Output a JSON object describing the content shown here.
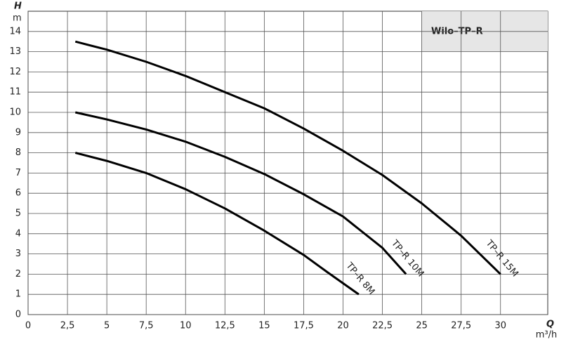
{
  "chart_data": {
    "type": "line",
    "legend_title": "Wilo–TP–R",
    "y_label": "H",
    "y_unit": "m",
    "x_label": "Q",
    "x_unit": "m³/h",
    "xlim": [
      0,
      33
    ],
    "ylim": [
      0,
      15
    ],
    "xticks": [
      0,
      {
        "value": 2.5,
        "label": "2,5"
      },
      5,
      {
        "value": 7.5,
        "label": "7,5"
      },
      10,
      {
        "value": 12.5,
        "label": "12,5"
      },
      15,
      {
        "value": 17.5,
        "label": "17,5"
      },
      20,
      {
        "value": 22.5,
        "label": "22,5"
      },
      25,
      {
        "value": 27.5,
        "label": "27,5"
      },
      30
    ],
    "yticks": [
      0,
      1,
      2,
      3,
      4,
      5,
      6,
      7,
      8,
      9,
      10,
      11,
      12,
      13,
      14
    ],
    "grid": true,
    "series": [
      {
        "name": "TP–R 15M",
        "color": "#000000",
        "x": [
          3,
          5,
          7.5,
          10,
          12.5,
          15,
          17.5,
          20,
          22.5,
          25,
          27.5,
          30
        ],
        "values": [
          13.5,
          13.1,
          12.5,
          11.8,
          11.0,
          10.2,
          9.2,
          8.1,
          6.9,
          5.5,
          3.9,
          2.0
        ]
      },
      {
        "name": "TP–R 10M",
        "color": "#000000",
        "x": [
          3,
          5,
          7.5,
          10,
          12.5,
          15,
          17.5,
          20,
          22.5,
          24
        ],
        "values": [
          10.0,
          9.65,
          9.15,
          8.55,
          7.8,
          6.95,
          5.95,
          4.85,
          3.3,
          2.0
        ]
      },
      {
        "name": "TP–R 8M",
        "color": "#000000",
        "x": [
          3,
          5,
          7.5,
          10,
          12.5,
          15,
          17.5,
          19,
          21
        ],
        "values": [
          8.0,
          7.6,
          7.0,
          6.2,
          5.25,
          4.15,
          2.95,
          2.1,
          1.0
        ]
      }
    ]
  }
}
